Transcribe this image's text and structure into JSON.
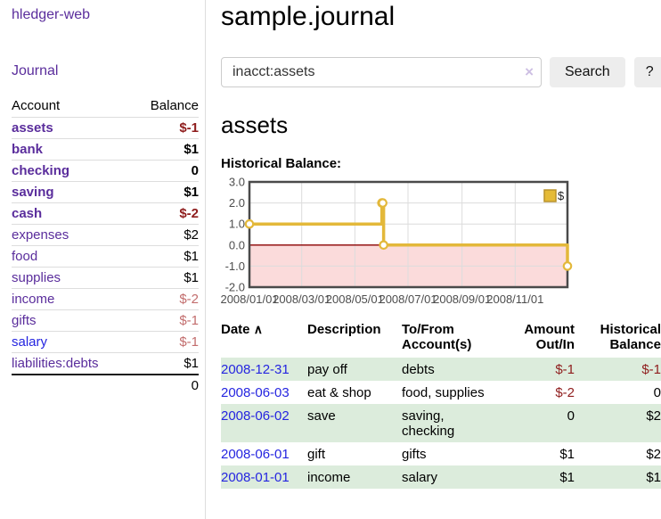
{
  "app": {
    "title": "hledger-web"
  },
  "sidebar": {
    "journal_link": "Journal",
    "accounts": {
      "headers": {
        "account": "Account",
        "balance": "Balance"
      },
      "rows": [
        {
          "name": "assets",
          "balance": "$-1"
        },
        {
          "name": "bank",
          "balance": "$1"
        },
        {
          "name": "checking",
          "balance": "0"
        },
        {
          "name": "saving",
          "balance": "$1"
        },
        {
          "name": "cash",
          "balance": "$-2"
        },
        {
          "name": "expenses",
          "balance": "$2"
        },
        {
          "name": "food",
          "balance": "$1"
        },
        {
          "name": "supplies",
          "balance": "$1"
        },
        {
          "name": "income",
          "balance": "$-2"
        },
        {
          "name": "gifts",
          "balance": "$-1"
        },
        {
          "name": "salary",
          "balance": "$-1"
        },
        {
          "name": "liabilities:debts",
          "balance": "$1"
        }
      ],
      "total": "0"
    }
  },
  "main": {
    "title": "sample.journal",
    "search": {
      "value": "inacct:assets",
      "clear_icon": "×",
      "button_label": "Search",
      "help_label": "?"
    },
    "account_heading": "assets",
    "chart_label": "Historical Balance:"
  },
  "chart_data": {
    "type": "line",
    "step": true,
    "title": "Historical Balance",
    "series": [
      {
        "name": "$",
        "color": "#e3b83a",
        "points": [
          {
            "date": "2008-01-01",
            "day": 0,
            "value": 1
          },
          {
            "date": "2008-06-01",
            "day": 152,
            "value": 2
          },
          {
            "date": "2008-06-02",
            "day": 153,
            "value": 2
          },
          {
            "date": "2008-06-03",
            "day": 154,
            "value": 0
          },
          {
            "date": "2008-12-31",
            "day": 365,
            "value": -1
          }
        ]
      }
    ],
    "xlim_days": [
      0,
      365
    ],
    "ylim": [
      -2,
      3
    ],
    "yticks": [
      3.0,
      2.0,
      1.0,
      0.0,
      -1.0,
      -2.0
    ],
    "xticks": [
      {
        "day": 0,
        "label": "2008/01/01"
      },
      {
        "day": 60,
        "label": "2008/03/01"
      },
      {
        "day": 121,
        "label": "2008/05/01"
      },
      {
        "day": 182,
        "label": "2008/07/01"
      },
      {
        "day": 244,
        "label": "2008/09/01"
      },
      {
        "day": 305,
        "label": "2008/11/01"
      }
    ],
    "grid": true,
    "legend": {
      "label": "$",
      "position": "top-right"
    },
    "colors": {
      "negative_region": "#fbdbdb",
      "zero_line": "#8b0000",
      "border": "#4a4a4a",
      "grid": "#dcdcdc",
      "marker_fill": "#ffffff",
      "legend_square": "#e5bb38",
      "legend_square_border": "#b8922a",
      "tick_text": "#4d4d4d"
    }
  },
  "register_table": {
    "sort_icon": "∧",
    "headers": {
      "date": "Date",
      "description": "Description",
      "accounts": "To/From Account(s)",
      "amount": "Amount Out/In",
      "balance": "Historical Balance"
    },
    "rows": [
      {
        "date": "2008-12-31",
        "description": "pay off",
        "accounts": "debts",
        "amount": "$-1",
        "balance": "$-1"
      },
      {
        "date": "2008-06-03",
        "description": "eat & shop",
        "accounts": "food, supplies",
        "amount": "$-2",
        "balance": "0"
      },
      {
        "date": "2008-06-02",
        "description": "save",
        "accounts": "saving, checking",
        "amount": "0",
        "balance": "$2"
      },
      {
        "date": "2008-06-01",
        "description": "gift",
        "accounts": "gifts",
        "amount": "$1",
        "balance": "$2"
      },
      {
        "date": "2008-01-01",
        "description": "income",
        "accounts": "salary",
        "amount": "$1",
        "balance": "$1"
      }
    ]
  }
}
